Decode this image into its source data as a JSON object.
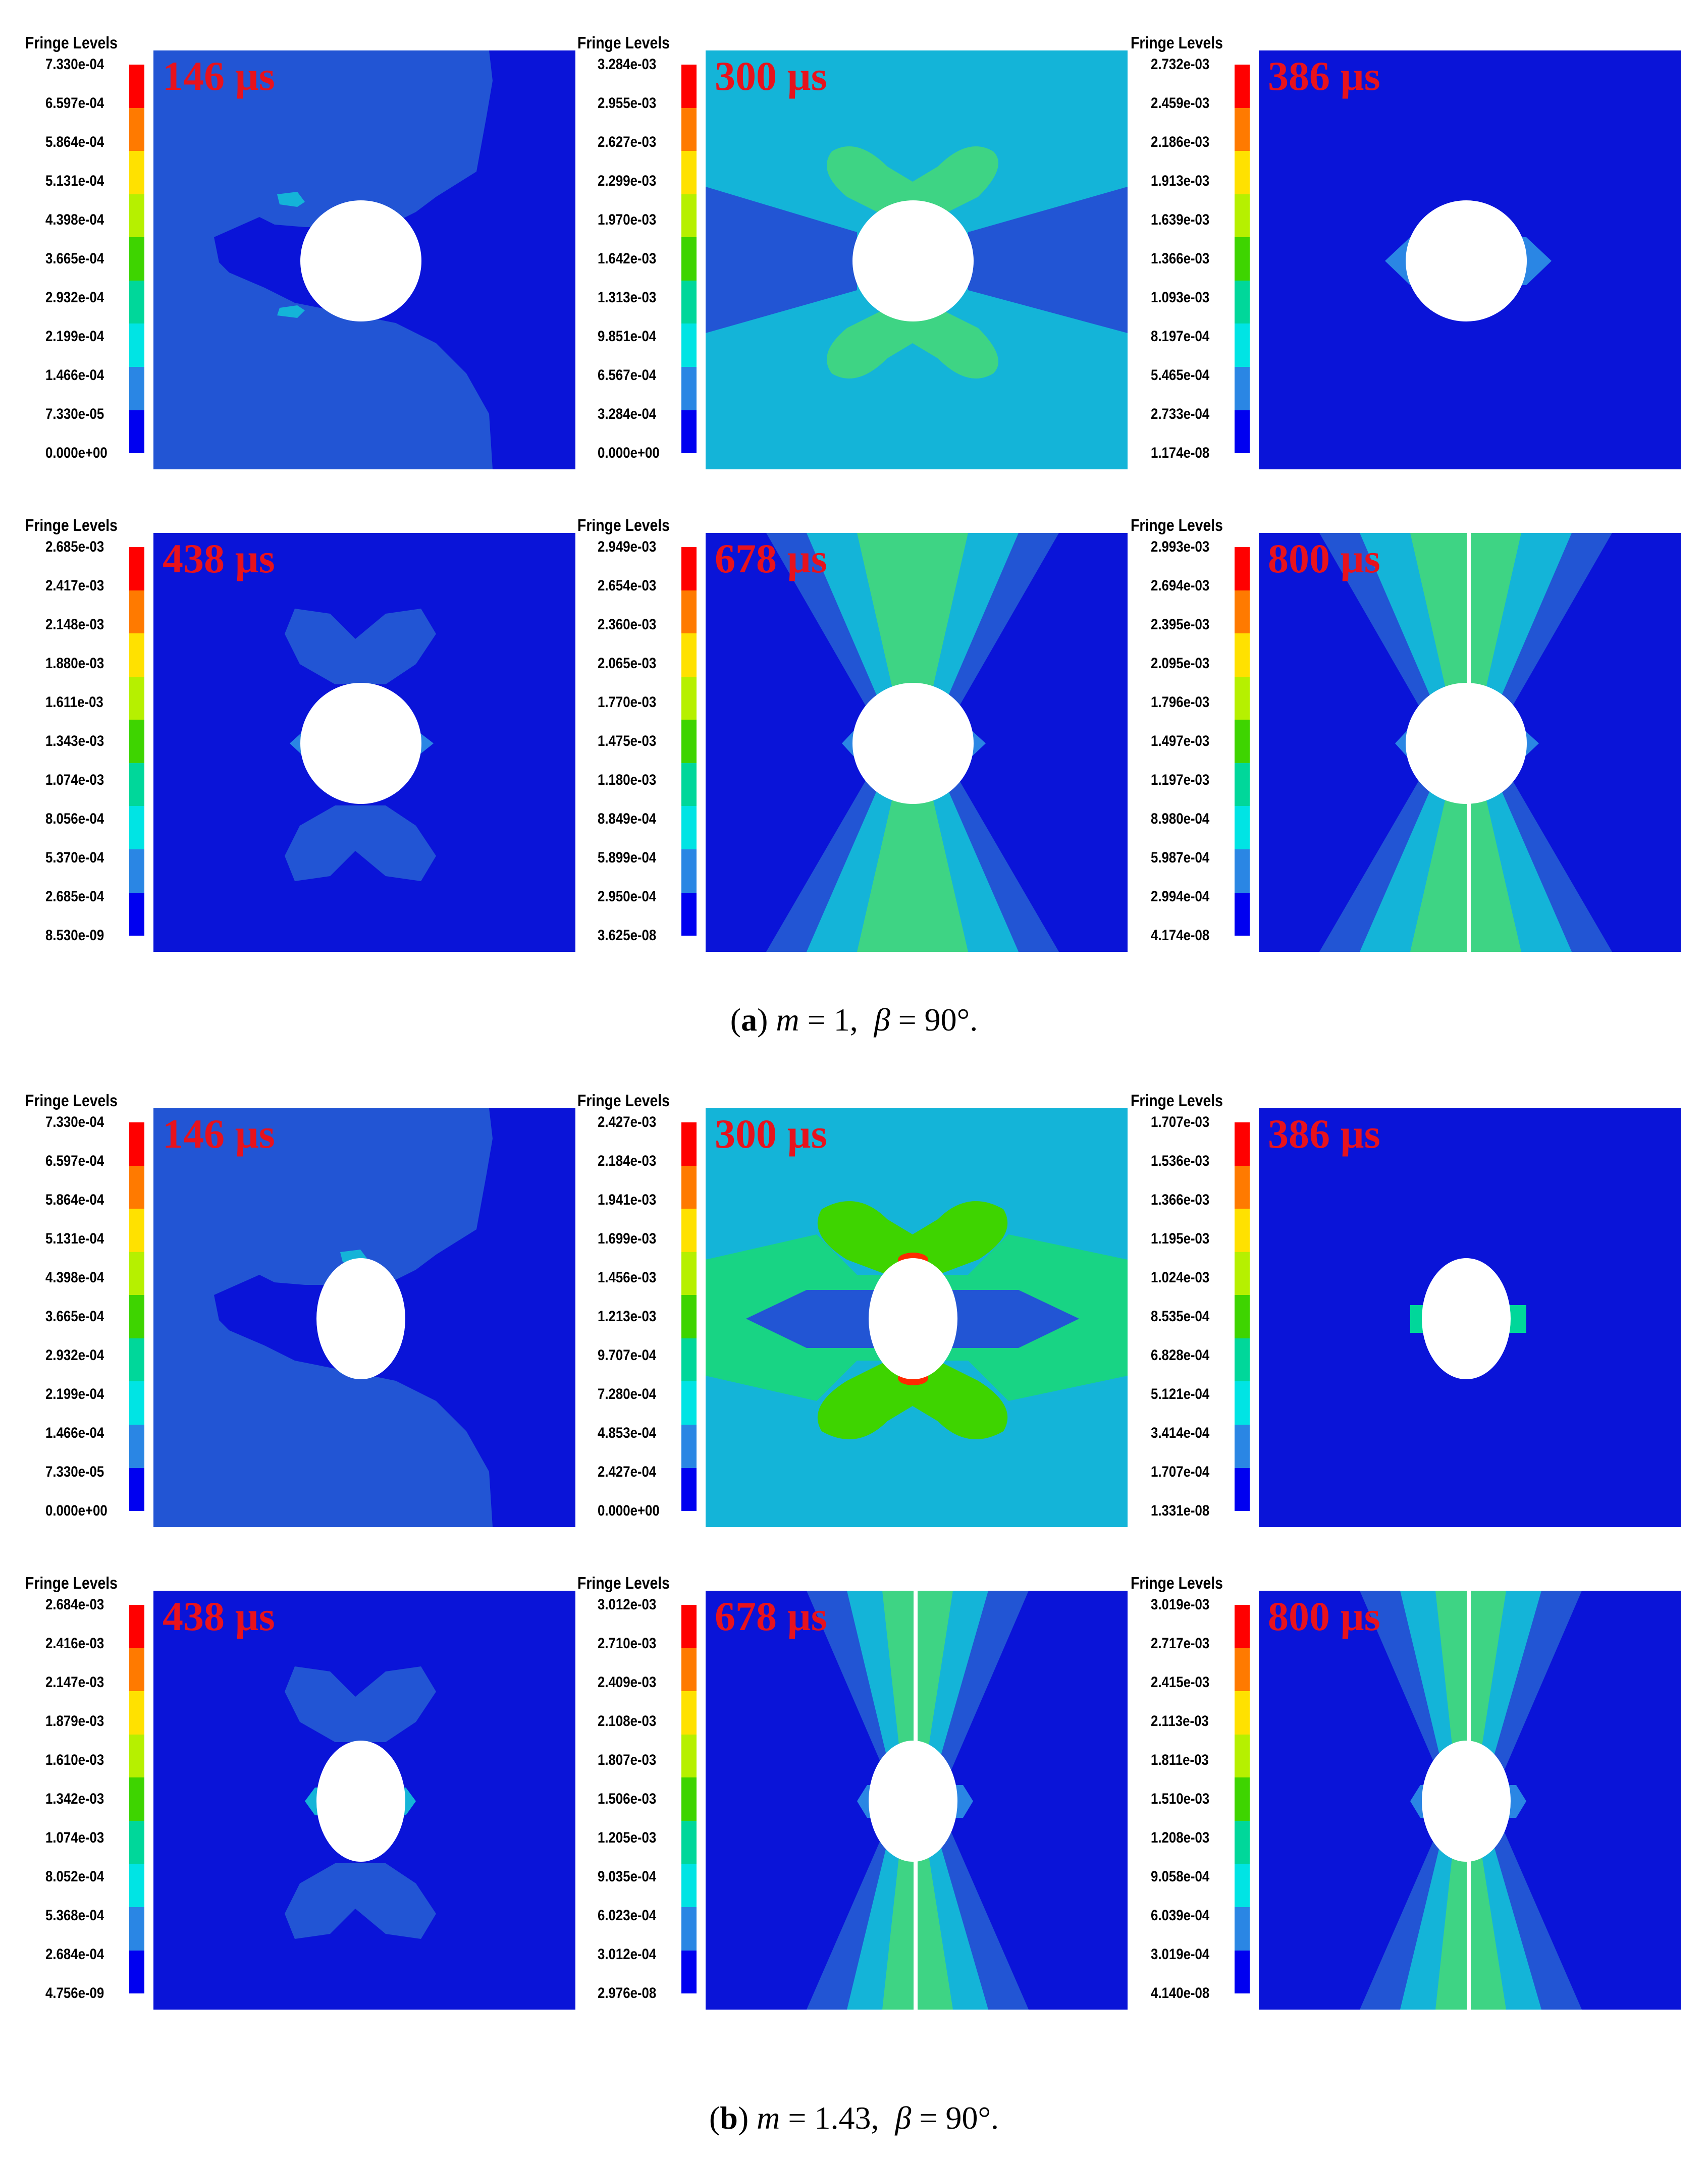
{
  "title_text": "Fringe Levels",
  "colors": {
    "scale": [
      "#ff0000",
      "#ff7a00",
      "#ffe100",
      "#b6f000",
      "#3ed400",
      "#00d79a",
      "#00e4e4",
      "#2a86e4",
      "#0000f0"
    ],
    "background_blue": "#0a14d8",
    "field_blue": "#2255d4",
    "field_cyan": "#14b4d8",
    "field_green": "#18d484",
    "time_label": "#e8121c"
  },
  "rows": [
    {
      "caption": {
        "letter": "a",
        "m_symbol": "m",
        "m_value": "= 1,",
        "beta_symbol": "β",
        "beta_value": "= 90°."
      },
      "panels": [
        {
          "time": "146 µs",
          "ticks": [
            "7.330e-04",
            "6.597e-04",
            "5.864e-04",
            "5.131e-04",
            "4.398e-04",
            "3.665e-04",
            "2.932e-04",
            "2.199e-04",
            "1.466e-04",
            "7.330e-05",
            "0.000e+00"
          ]
        },
        {
          "time": "300 µs",
          "ticks": [
            "3.284e-03",
            "2.955e-03",
            "2.627e-03",
            "2.299e-03",
            "1.970e-03",
            "1.642e-03",
            "1.313e-03",
            "9.851e-04",
            "6.567e-04",
            "3.284e-04",
            "0.000e+00"
          ]
        },
        {
          "time": "386 µs",
          "ticks": [
            "2.732e-03",
            "2.459e-03",
            "2.186e-03",
            "1.913e-03",
            "1.639e-03",
            "1.366e-03",
            "1.093e-03",
            "8.197e-04",
            "5.465e-04",
            "2.733e-04",
            "1.174e-08"
          ]
        },
        {
          "time": "438 µs",
          "ticks": [
            "2.685e-03",
            "2.417e-03",
            "2.148e-03",
            "1.880e-03",
            "1.611e-03",
            "1.343e-03",
            "1.074e-03",
            "8.056e-04",
            "5.370e-04",
            "2.685e-04",
            "8.530e-09"
          ]
        },
        {
          "time": "678 µs",
          "ticks": [
            "2.949e-03",
            "2.654e-03",
            "2.360e-03",
            "2.065e-03",
            "1.770e-03",
            "1.475e-03",
            "1.180e-03",
            "8.849e-04",
            "5.899e-04",
            "2.950e-04",
            "3.625e-08"
          ]
        },
        {
          "time": "800 µs",
          "ticks": [
            "2.993e-03",
            "2.694e-03",
            "2.395e-03",
            "2.095e-03",
            "1.796e-03",
            "1.497e-03",
            "1.197e-03",
            "8.980e-04",
            "5.987e-04",
            "2.994e-04",
            "4.174e-08"
          ]
        }
      ]
    },
    {
      "caption": {
        "letter": "b",
        "m_symbol": "m",
        "m_value": "= 1.43,",
        "beta_symbol": "β",
        "beta_value": "= 90°."
      },
      "panels": [
        {
          "time": "146 µs",
          "ticks": [
            "7.330e-04",
            "6.597e-04",
            "5.864e-04",
            "5.131e-04",
            "4.398e-04",
            "3.665e-04",
            "2.932e-04",
            "2.199e-04",
            "1.466e-04",
            "7.330e-05",
            "0.000e+00"
          ]
        },
        {
          "time": "300 µs",
          "ticks": [
            "2.427e-03",
            "2.184e-03",
            "1.941e-03",
            "1.699e-03",
            "1.456e-03",
            "1.213e-03",
            "9.707e-04",
            "7.280e-04",
            "4.853e-04",
            "2.427e-04",
            "0.000e+00"
          ]
        },
        {
          "time": "386 µs",
          "ticks": [
            "1.707e-03",
            "1.536e-03",
            "1.366e-03",
            "1.195e-03",
            "1.024e-03",
            "8.535e-04",
            "6.828e-04",
            "5.121e-04",
            "3.414e-04",
            "1.707e-04",
            "1.331e-08"
          ]
        },
        {
          "time": "438 µs",
          "ticks": [
            "2.684e-03",
            "2.416e-03",
            "2.147e-03",
            "1.879e-03",
            "1.610e-03",
            "1.342e-03",
            "1.074e-03",
            "8.052e-04",
            "5.368e-04",
            "2.684e-04",
            "4.756e-09"
          ]
        },
        {
          "time": "678 µs",
          "ticks": [
            "3.012e-03",
            "2.710e-03",
            "2.409e-03",
            "2.108e-03",
            "1.807e-03",
            "1.506e-03",
            "1.205e-03",
            "9.035e-04",
            "6.023e-04",
            "3.012e-04",
            "2.976e-08"
          ]
        },
        {
          "time": "800 µs",
          "ticks": [
            "3.019e-03",
            "2.717e-03",
            "2.415e-03",
            "2.113e-03",
            "1.811e-03",
            "1.510e-03",
            "1.208e-03",
            "9.058e-04",
            "6.039e-04",
            "3.019e-04",
            "4.140e-08"
          ]
        }
      ]
    }
  ]
}
